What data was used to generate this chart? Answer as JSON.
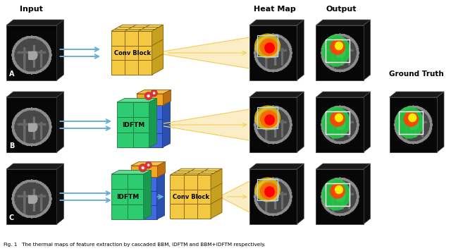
{
  "title": "Fig. 1   The thermal maps of feature extraction by cascaded BBM, IDFTM and BBM+IDFTM respectively.",
  "bg_color": "#ffffff",
  "row_labels": [
    "A",
    "B",
    "C"
  ],
  "top_labels": {
    "input": "Input",
    "heatmap": "Heat Map",
    "output": "Output",
    "groundtruth": "Ground Truth"
  },
  "colors": {
    "yellow_face": "#F5C842",
    "yellow_dark": "#C8A020",
    "yellow_top": "#F8D860",
    "yellow_light": "#FFF0A0",
    "green": "#2ECC71",
    "green_dark": "#1a9950",
    "blue_block": "#4169E1",
    "blue_dark": "#1a3a8a",
    "orange_block": "#F5A623",
    "orange_dark": "#C07010",
    "arrow_blue": "#6AAFD6",
    "arrow_yellow": "#F5C842",
    "brain_bg": "#080808",
    "brain_gray": "#505050",
    "brain_mid": "#383838",
    "pin_red": "#E8323C",
    "pin_outline": "#C0392B"
  }
}
